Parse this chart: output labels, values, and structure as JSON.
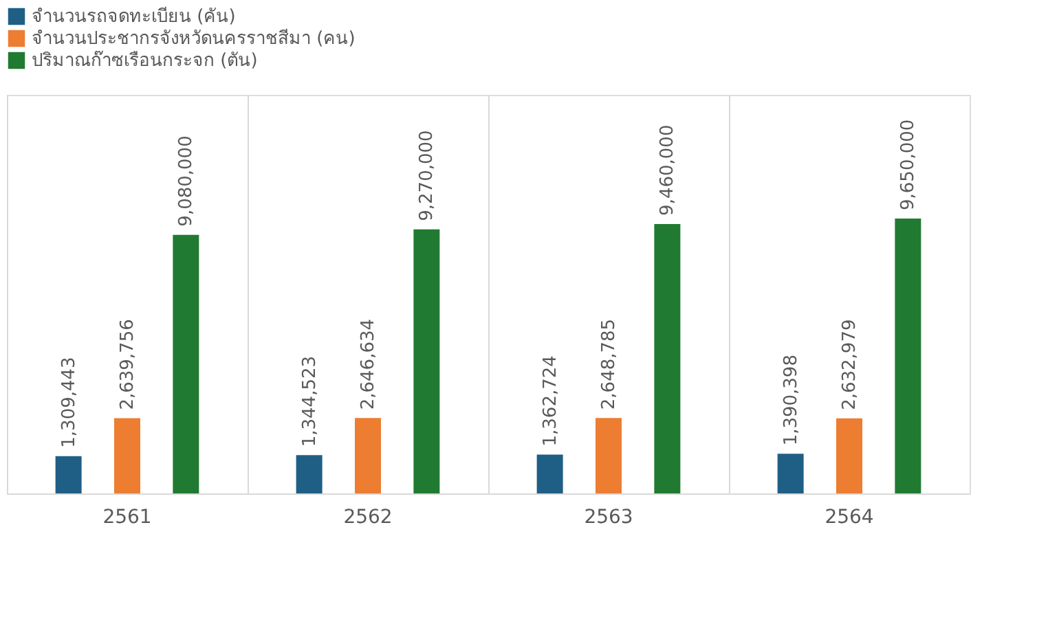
{
  "chart_data": {
    "type": "bar",
    "categories": [
      "2561",
      "2562",
      "2563",
      "2564"
    ],
    "series": [
      {
        "name": "จำนวนรถจดทะเบียน (คัน)",
        "color": "#1f5f86",
        "values": [
          1309443,
          1344523,
          1362724,
          1390398
        ],
        "value_labels": [
          "1,309,443",
          "1,344,523",
          "1,362,724",
          "1,390,398"
        ]
      },
      {
        "name": "จำนวนประชากรจังหวัดนครราชสีมา (คน)",
        "color": "#ed7d31",
        "values": [
          2639756,
          2646634,
          2648785,
          2632979
        ],
        "value_labels": [
          "2,639,756",
          "2,646,634",
          "2,648,785",
          "2,632,979"
        ]
      },
      {
        "name": "ปริมาณก๊าซเรือนกระจก (ตัน)",
        "color": "#217a31",
        "values": [
          9080000,
          9270000,
          9460000,
          9650000
        ],
        "value_labels": [
          "9,080,000",
          "9,270,000",
          "9,460,000",
          "9,650,000"
        ]
      }
    ],
    "grid": "x",
    "legend": "top",
    "tick_labels": "x"
  }
}
